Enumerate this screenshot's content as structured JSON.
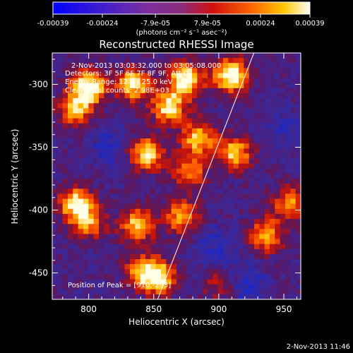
{
  "colorbar": {
    "tick_labels": [
      "-0.00039",
      "-0.00024",
      "-7.9e-05",
      "7.9e-05",
      "0.00024",
      "0.00039"
    ],
    "range": [
      -0.00039,
      0.00039
    ],
    "units_html": "(photons cm⁻² s⁻¹ asec⁻²)"
  },
  "chart_data": {
    "type": "heatmap",
    "title": "Reconstructed RHESSI Image",
    "xlabel": "Heliocentric X (arcsec)",
    "ylabel": "Heliocentric Y (arcsec)",
    "xlim": [
      772,
      963
    ],
    "ylim": [
      -471,
      -275
    ],
    "x_ticks": [
      800,
      850,
      900,
      950
    ],
    "y_ticks": [
      -300,
      -350,
      -400,
      -450
    ],
    "colormap": "blue-purple-red-orange-yellow-white",
    "limb_line": [
      [
        853,
        -471
      ],
      [
        927,
        -275
      ]
    ],
    "peak_position": [
      910,
      -293
    ],
    "hot_regions": [
      {
        "x": 800,
        "y": -302,
        "w": 1.0
      },
      {
        "x": 835,
        "y": -300,
        "w": 0.85
      },
      {
        "x": 875,
        "y": -296,
        "w": 1.0
      },
      {
        "x": 910,
        "y": -293,
        "w": 1.0
      },
      {
        "x": 790,
        "y": -320,
        "w": 0.7
      },
      {
        "x": 862,
        "y": -318,
        "w": 0.85
      },
      {
        "x": 845,
        "y": -355,
        "w": 0.85
      },
      {
        "x": 885,
        "y": -343,
        "w": 0.8
      },
      {
        "x": 913,
        "y": -355,
        "w": 0.75
      },
      {
        "x": 878,
        "y": -370,
        "w": 0.6
      },
      {
        "x": 790,
        "y": -395,
        "w": 0.85
      },
      {
        "x": 800,
        "y": -410,
        "w": 0.6
      },
      {
        "x": 838,
        "y": -412,
        "w": 0.75
      },
      {
        "x": 872,
        "y": -405,
        "w": 0.7
      },
      {
        "x": 937,
        "y": -420,
        "w": 0.7
      },
      {
        "x": 955,
        "y": -395,
        "w": 0.6
      },
      {
        "x": 840,
        "y": -448,
        "w": 0.5
      },
      {
        "x": 853,
        "y": -453,
        "w": 0.95
      },
      {
        "x": 903,
        "y": -460,
        "w": 0.4
      }
    ],
    "cold_regions": [
      {
        "x": 920,
        "y": -460,
        "w": 0.9
      },
      {
        "x": 815,
        "y": -350,
        "w": 0.6
      },
      {
        "x": 900,
        "y": -430,
        "w": 0.7
      },
      {
        "x": 950,
        "y": -335,
        "w": 0.5
      }
    ]
  },
  "info": {
    "time_range": "2-Nov-2013 03:03:32.000 to 03:05:08.000",
    "detectors": "Detectors: 3F 5F 6F 7F 8F 9F, Att 0",
    "energy": "Energy Range: 12.0 - 25.0 keV",
    "clean": "Clean    Total counts: 2.98E+03",
    "peak": "Position of Peak = [910,-293]"
  },
  "timestamp": "2-Nov-2013 11:46"
}
